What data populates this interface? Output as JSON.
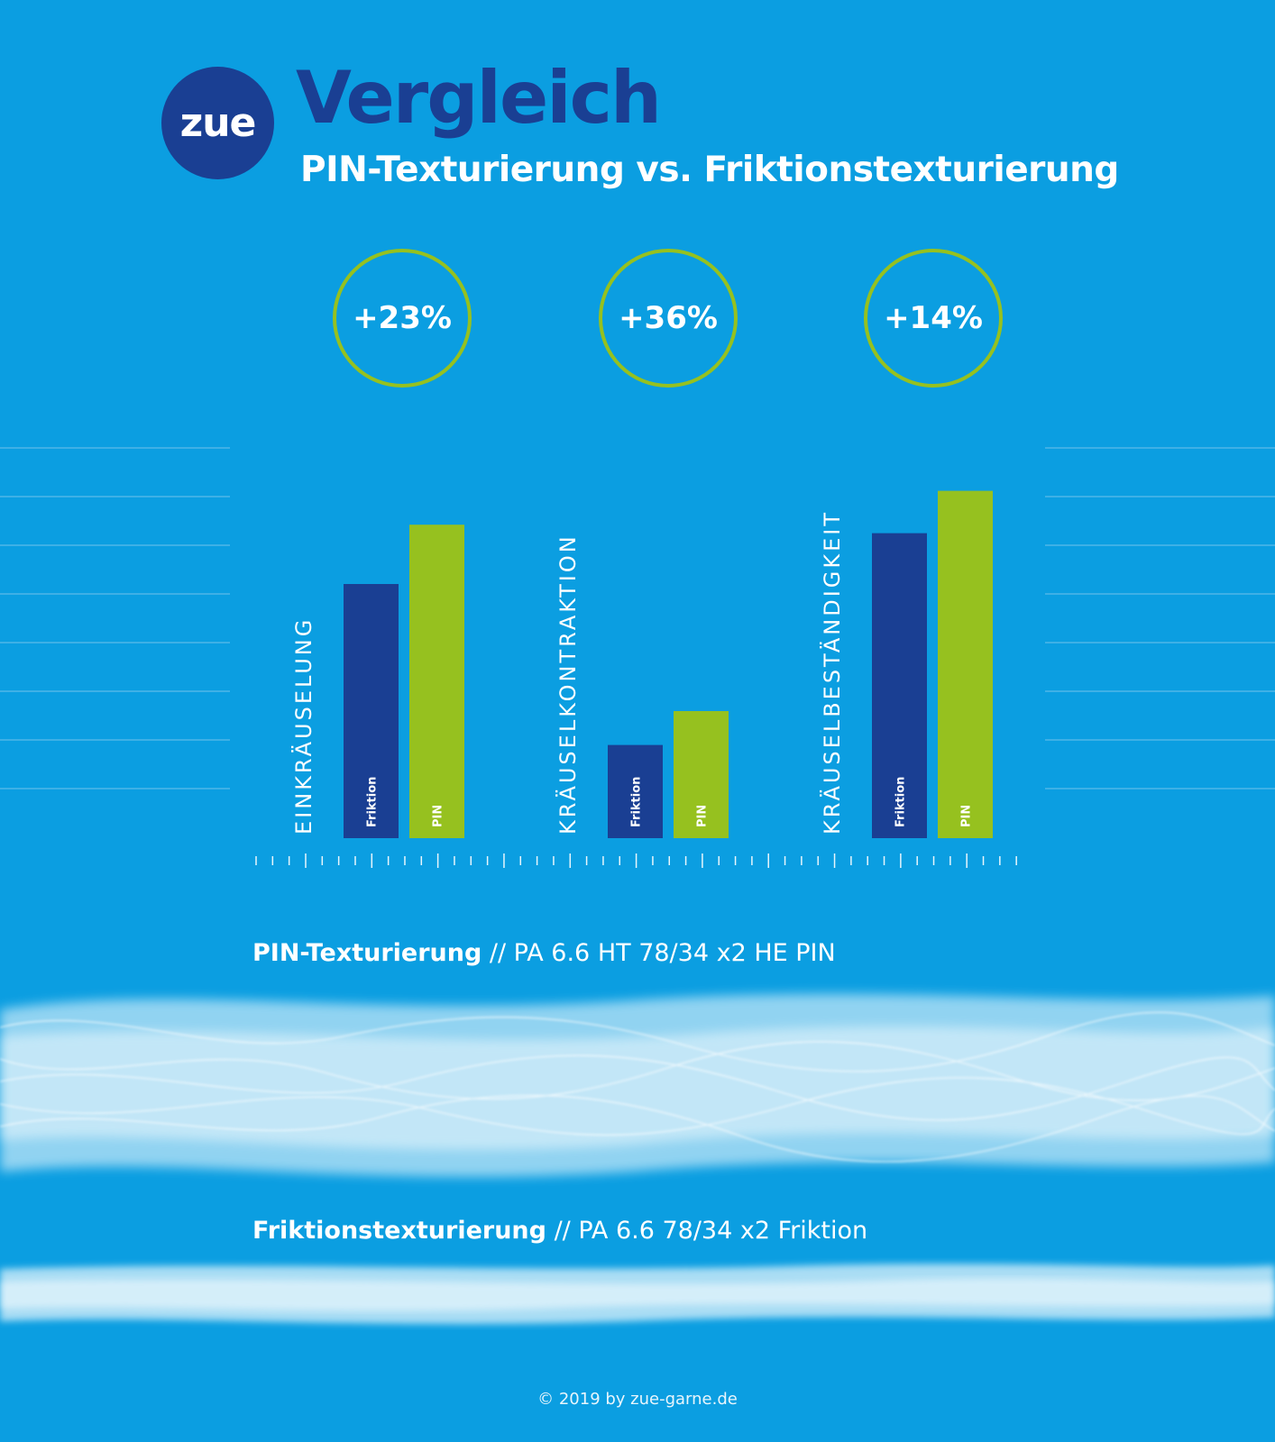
{
  "brand": {
    "logo_text": "zue"
  },
  "header": {
    "title": "Vergleich",
    "subtitle": "PIN-Texturierung vs. Friktionstexturierung"
  },
  "badges": [
    "+23%",
    "+36%",
    "+14%"
  ],
  "colors": {
    "background": "#0b9ee1",
    "friktion": "#1a3f93",
    "pin": "#96c11f",
    "badge_ring": "#96c11f"
  },
  "chart_data": {
    "type": "bar",
    "categories": [
      "EINKRÄUSELUNG",
      "KRÄUSELKONTRAKTION",
      "KRÄUSELBESTÄNDIGKEIT"
    ],
    "series": [
      {
        "name": "Friktion",
        "values": [
          6.0,
          2.2,
          7.2
        ]
      },
      {
        "name": "PIN",
        "values": [
          7.4,
          3.0,
          8.2
        ]
      }
    ],
    "ylim": [
      0,
      10
    ],
    "grid": true,
    "legend": "bar labels"
  },
  "captions": {
    "pin": {
      "bold": "PIN-Texturierung",
      "rest": " // PA 6.6 HT 78/34 x2 HE PIN"
    },
    "friktion": {
      "bold": "Friktionstexturierung",
      "rest": " // PA 6.6 78/34 x2 Friktion"
    }
  },
  "footer": {
    "copyright": "© 2019 by zue-garne.de"
  }
}
